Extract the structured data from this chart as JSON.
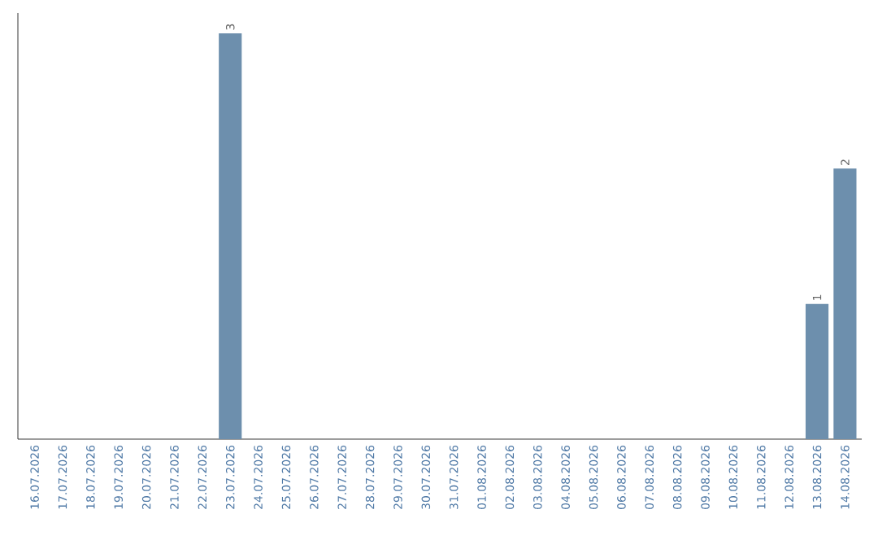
{
  "chart_data": {
    "type": "bar",
    "categories": [
      "16.07.2026",
      "17.07.2026",
      "18.07.2026",
      "19.07.2026",
      "20.07.2026",
      "21.07.2026",
      "22.07.2026",
      "23.07.2026",
      "24.07.2026",
      "25.07.2026",
      "26.07.2026",
      "27.07.2026",
      "28.07.2026",
      "29.07.2026",
      "30.07.2026",
      "31.07.2026",
      "01.08.2026",
      "02.08.2026",
      "03.08.2026",
      "04.08.2026",
      "05.08.2026",
      "06.08.2026",
      "07.08.2026",
      "08.08.2026",
      "09.08.2026",
      "10.08.2026",
      "11.08.2026",
      "12.08.2026",
      "13.08.2026",
      "14.08.2026"
    ],
    "values": [
      0,
      0,
      0,
      0,
      0,
      0,
      0,
      3,
      0,
      0,
      0,
      0,
      0,
      0,
      0,
      0,
      0,
      0,
      0,
      0,
      0,
      0,
      0,
      0,
      0,
      0,
      0,
      0,
      1,
      2
    ],
    "value_labels": [
      null,
      null,
      null,
      null,
      null,
      null,
      null,
      "3",
      null,
      null,
      null,
      null,
      null,
      null,
      null,
      null,
      null,
      null,
      null,
      null,
      null,
      null,
      null,
      null,
      null,
      null,
      null,
      null,
      "1",
      "2"
    ],
    "color": "#6d8fad"
  }
}
